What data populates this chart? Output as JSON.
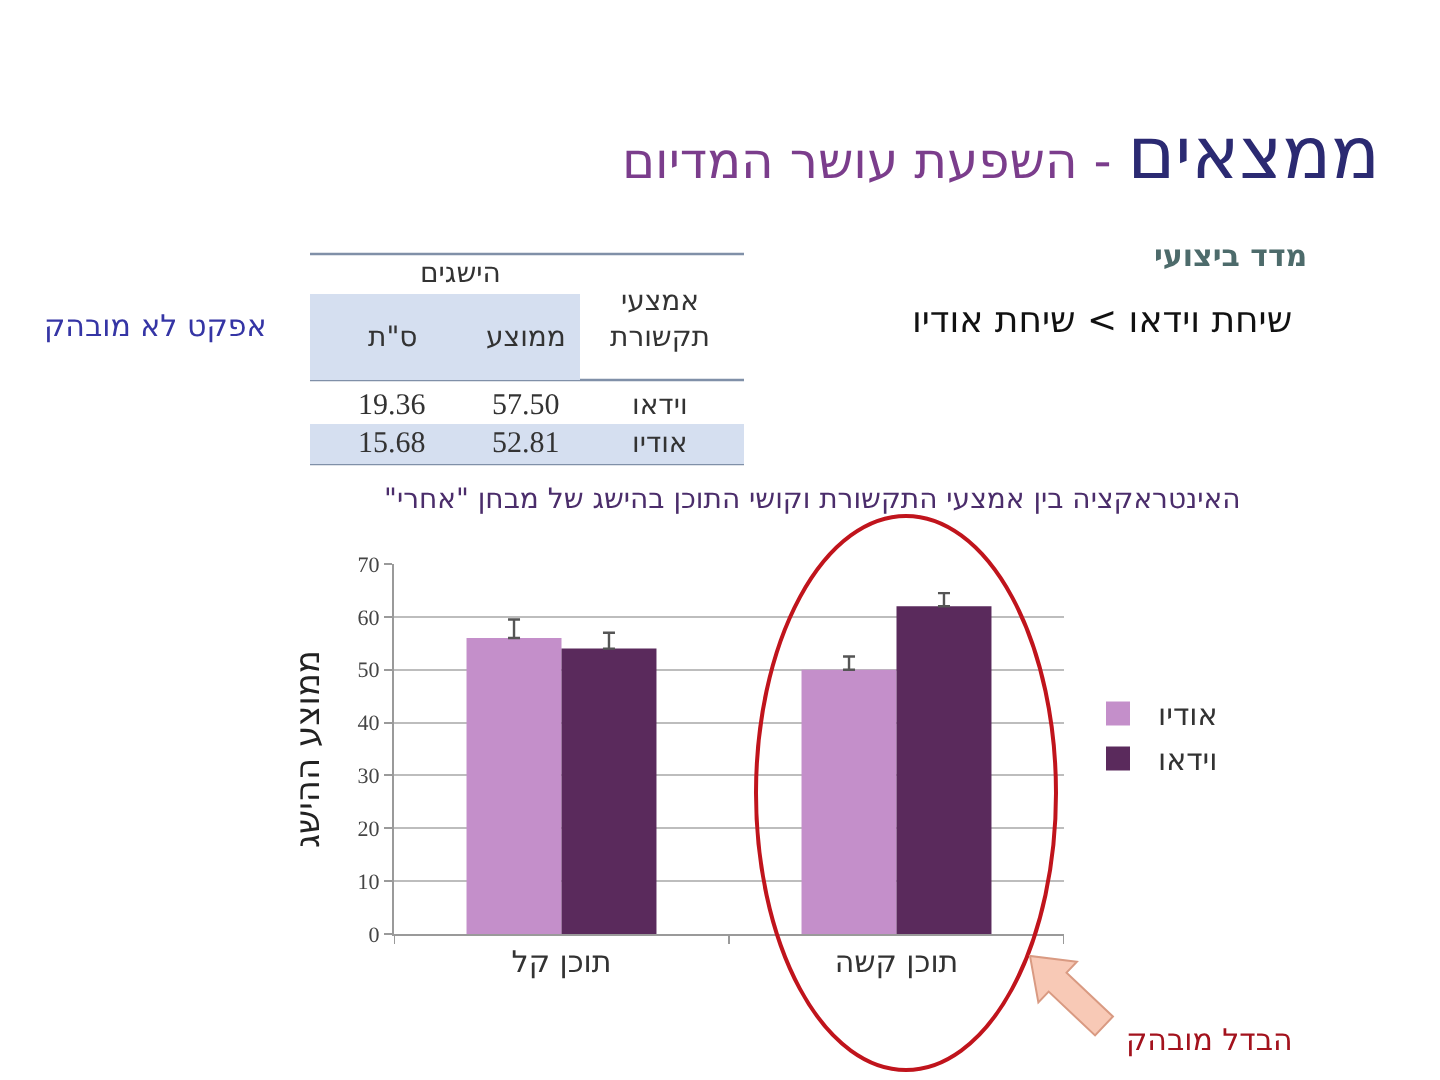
{
  "chart_data": {
    "type": "bar",
    "title": "ממצאים - השפעת עושר המדיום",
    "subtitle": "מדד ביצועי",
    "ylabel": "ממוצע ההישג",
    "categories": [
      "תוכן קל",
      "תוכן קשה"
    ],
    "series": [
      {
        "name": "אודיו",
        "color": "#c48fca",
        "values": [
          56,
          50
        ],
        "errors": [
          [
            56,
            59.5
          ],
          [
            50,
            52.5
          ]
        ]
      },
      {
        "name": "וידאו",
        "color": "#5a2a5c",
        "values": [
          54,
          62
        ],
        "errors": [
          [
            54,
            57
          ],
          [
            62,
            64.5
          ]
        ]
      }
    ],
    "ylim": [
      0,
      70
    ],
    "yticks": [
      0,
      10,
      20,
      30,
      40,
      50,
      60,
      70
    ],
    "grid": "y",
    "legend": "right",
    "annotations": [
      "שיחת וידאו > שיחת אודיו",
      "הישגים",
      "אמצעי תקשורת",
      "ממוצע",
      "ס\"ת",
      "וידאו",
      "57.50",
      "19.36",
      "אודיו",
      "52.81",
      "15.68",
      "אפקט לא מובהק",
      "האינטראקציה בין אמצעי התקשורת וקושי התוכן בהישג של מבחן \"אחרי\"",
      "הבדל מובהק"
    ]
  }
}
